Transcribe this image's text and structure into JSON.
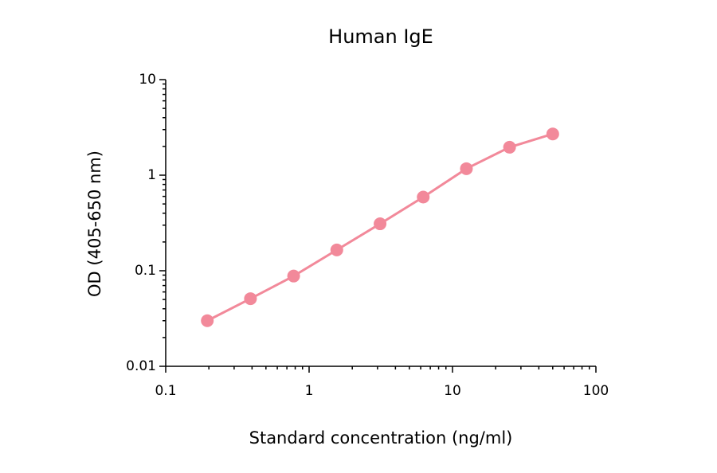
{
  "chart_data": {
    "type": "line",
    "title": "Human IgE",
    "x_label": "Standard concentration (ng/ml)",
    "y_label": "OD (405-650 nm)",
    "x": [
      0.195,
      0.39,
      0.78,
      1.56,
      3.125,
      6.25,
      12.5,
      25,
      50
    ],
    "series": [
      {
        "name": "Human IgE",
        "color": "#f2899a",
        "values": [
          0.03,
          0.051,
          0.088,
          0.165,
          0.31,
          0.59,
          1.17,
          1.96,
          2.7
        ]
      }
    ],
    "xlim": [
      0.1,
      100
    ],
    "xticks": [
      0.1,
      1,
      10,
      100
    ],
    "xscale": "log",
    "ylim": [
      0.01,
      10
    ],
    "yticks": [
      0.01,
      0.1,
      1,
      10
    ],
    "yscale": "log",
    "grid": false,
    "markers": true
  }
}
